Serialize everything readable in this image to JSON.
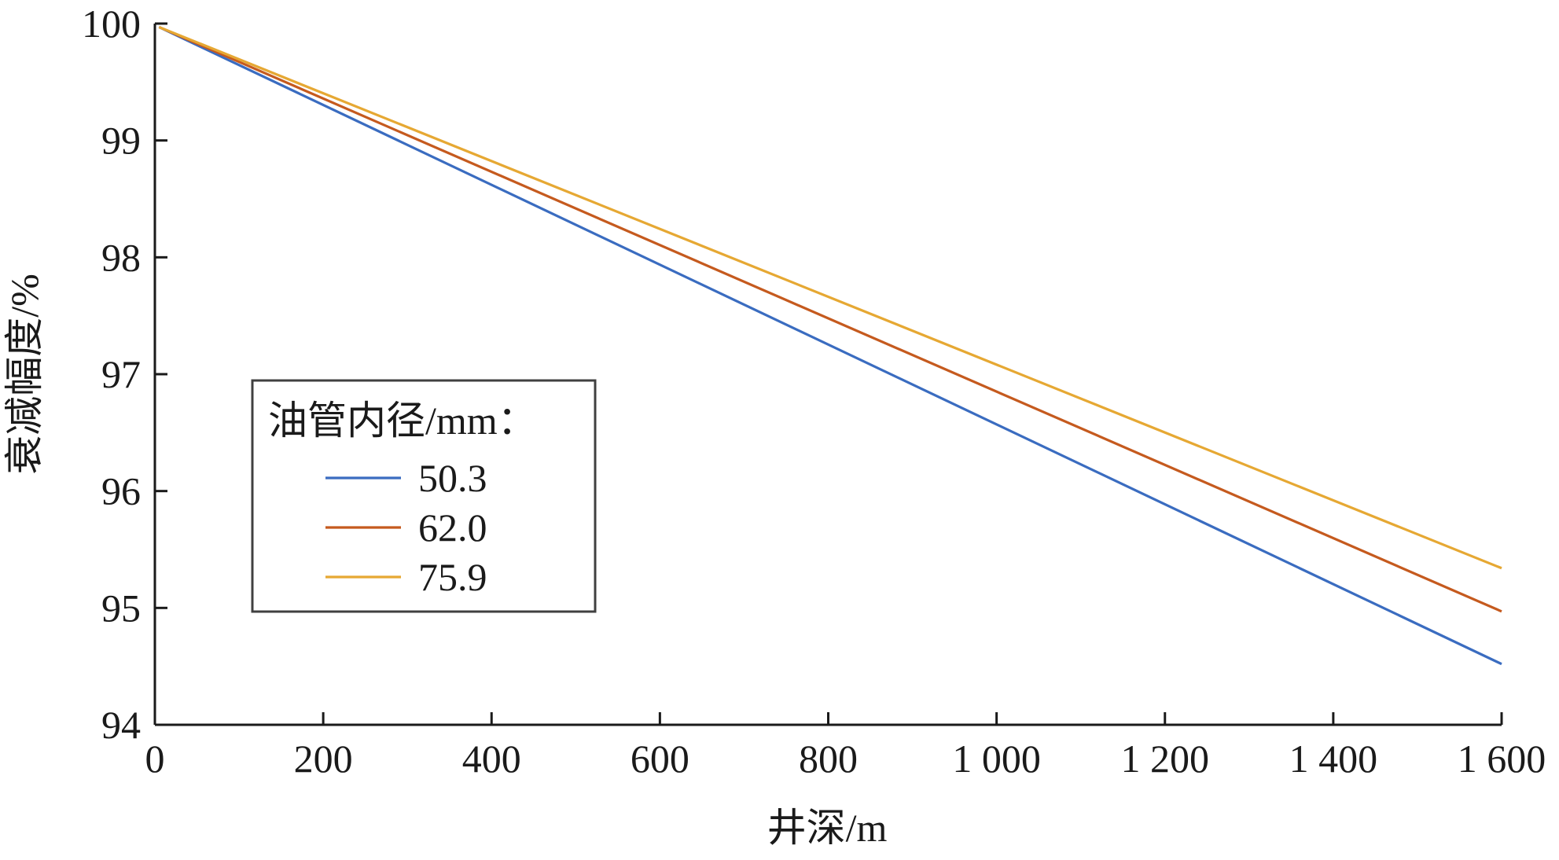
{
  "chart_data": {
    "type": "line",
    "xlabel": "井深/m",
    "ylabel": "衰减幅度/%",
    "xlim": [
      0,
      1600
    ],
    "ylim": [
      94,
      100
    ],
    "x_ticks": [
      0,
      200,
      400,
      600,
      800,
      1000,
      1200,
      1400,
      1600
    ],
    "x_tick_labels": [
      "0",
      "200",
      "400",
      "600",
      "800",
      "1 000",
      "1 200",
      "1 400",
      "1 600"
    ],
    "y_ticks": [
      94,
      95,
      96,
      97,
      98,
      99,
      100
    ],
    "y_tick_labels": [
      "94",
      "95",
      "96",
      "97",
      "98",
      "99",
      "100"
    ],
    "grid": false,
    "legend": {
      "title": "油管内径/mm：",
      "placement": "center-left"
    },
    "series": [
      {
        "name": "50.3",
        "color": "#3a6cc0",
        "x": [
          5,
          1600
        ],
        "y": [
          99.97,
          94.52
        ]
      },
      {
        "name": "62.0",
        "color": "#c55a1e",
        "x": [
          5,
          1600
        ],
        "y": [
          99.97,
          94.97
        ]
      },
      {
        "name": "75.9",
        "color": "#e6a833",
        "x": [
          5,
          1600
        ],
        "y": [
          99.97,
          95.34
        ]
      }
    ]
  }
}
